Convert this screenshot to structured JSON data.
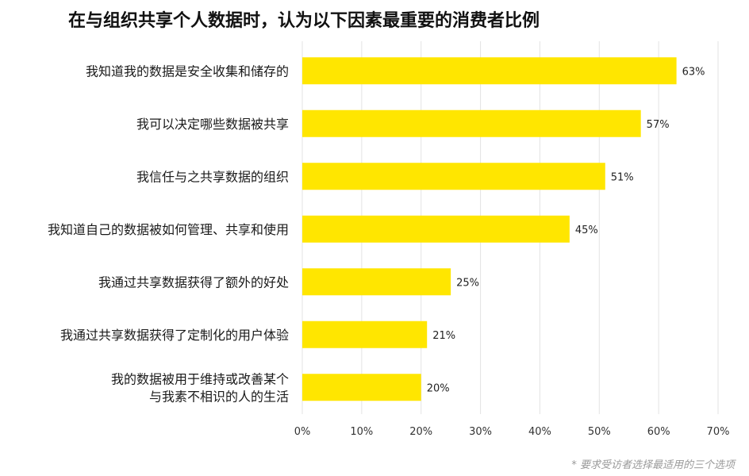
{
  "chart_data": {
    "type": "bar",
    "orientation": "horizontal",
    "title": "在与组织共享个人数据时，认为以下因素最重要的消费者比例",
    "categories": [
      [
        "我知道我的数据是安全收集和储存的"
      ],
      [
        "我可以决定哪些数据被共享"
      ],
      [
        "我信任与之共享数据的组织"
      ],
      [
        "我知道自己的数据被如何管理、共享和使用"
      ],
      [
        "我通过共享数据获得了额外的好处"
      ],
      [
        "我通过共享数据获得了定制化的用户体验"
      ],
      [
        "我的数据被用于维持或改善某个",
        "与我素不相识的人的生活"
      ]
    ],
    "values": [
      63,
      57,
      51,
      45,
      25,
      21,
      20
    ],
    "value_labels": [
      "63%",
      "57%",
      "51%",
      "45%",
      "25%",
      "21%",
      "20%"
    ],
    "xlim": [
      0,
      70
    ],
    "x_ticks": [
      0,
      10,
      20,
      30,
      40,
      50,
      60,
      70
    ],
    "x_tick_labels": [
      "0%",
      "10%",
      "20%",
      "30%",
      "40%",
      "50%",
      "60%",
      "70%"
    ],
    "xlabel": "",
    "ylabel": "",
    "grid": "vertical",
    "legend": "none",
    "bar_color": "#FFE600",
    "grid_color": "#e3e3e3",
    "footnote": "* 要求受访者选择最适用的三个选项"
  }
}
